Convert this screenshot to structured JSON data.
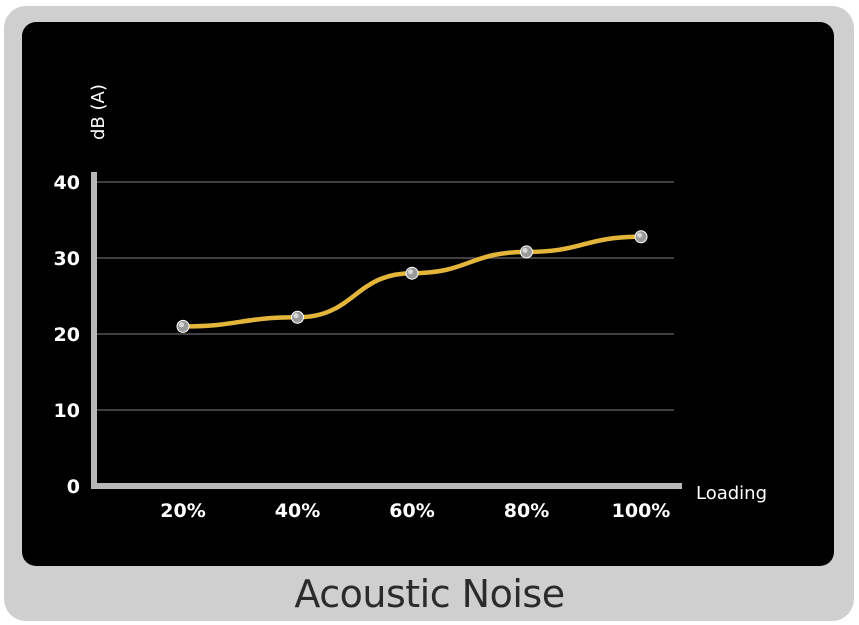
{
  "chart_data": {
    "type": "line",
    "title": "Acoustic Noise",
    "xlabel": "Loading",
    "ylabel": "dB (A)",
    "categories": [
      "20%",
      "40%",
      "60%",
      "80%",
      "100%"
    ],
    "yticks": [
      "0",
      "10",
      "20",
      "30",
      "40"
    ],
    "ylim": [
      0,
      40
    ],
    "grid": true,
    "series": [
      {
        "values": [
          21,
          22.2,
          28,
          30.8,
          32.8
        ]
      }
    ],
    "colors": {
      "line": "#e3b53a",
      "marker": "#d8d8d8",
      "axis": "#b8b8b8",
      "grid": "#555555",
      "background": "#000000"
    }
  }
}
